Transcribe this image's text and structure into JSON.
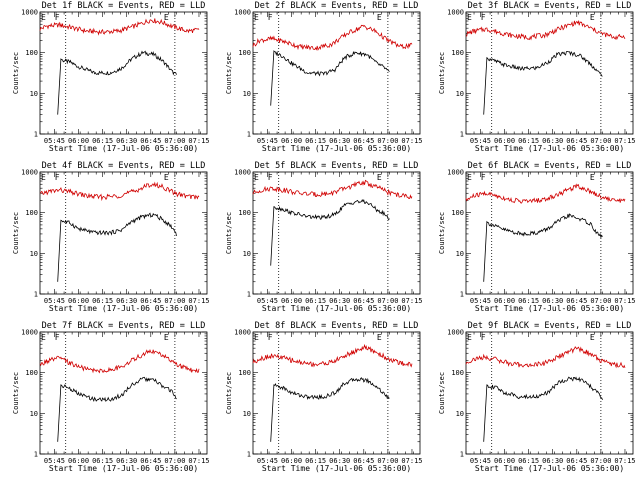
{
  "chart_data": [
    {
      "type": "line",
      "title": "Det 1f BLACK = Events, RED = LLD",
      "xlabel": "Start Time (17-Jul-06 05:36:00)",
      "ylabel": "Counts/sec",
      "yscale": "log",
      "ylim": [
        1,
        1000
      ],
      "x_ticks": [
        "05:45",
        "06:00",
        "06:15",
        "06:30",
        "06:45",
        "07:00",
        "07:15"
      ],
      "y_ticks": [
        "1",
        "10",
        "100",
        "1000"
      ],
      "markers": [
        {
          "label": "F",
          "x": "05:52"
        },
        {
          "label": "E",
          "x": "07:00"
        }
      ],
      "series": [
        {
          "color": "#000000",
          "x": [
            "05:47",
            "05:49",
            "05:50",
            "05:55",
            "06:00",
            "06:10",
            "06:20",
            "06:27",
            "06:33",
            "06:40",
            "06:47",
            "06:53",
            "06:58",
            "07:01"
          ],
          "y": [
            3,
            70,
            65,
            58,
            45,
            32,
            32,
            42,
            70,
            100,
            90,
            60,
            35,
            28
          ]
        },
        {
          "color": "#d00000",
          "x": [
            "05:36",
            "05:40",
            "05:48",
            "05:55",
            "06:05",
            "06:15",
            "06:25",
            "06:35",
            "06:45",
            "06:52",
            "07:00",
            "07:08",
            "07:15"
          ],
          "y": [
            380,
            450,
            480,
            420,
            340,
            320,
            340,
            450,
            640,
            560,
            420,
            340,
            360
          ]
        }
      ]
    },
    {
      "type": "line",
      "title": "Det 2f BLACK = Events, RED = LLD",
      "xlabel": "Start Time (17-Jul-06 05:36:00)",
      "ylabel": "Counts/sec",
      "yscale": "log",
      "ylim": [
        1,
        1000
      ],
      "x_ticks": [
        "05:45",
        "06:00",
        "06:15",
        "06:30",
        "06:45",
        "07:00",
        "07:15"
      ],
      "y_ticks": [
        "1",
        "10",
        "100",
        "1000"
      ],
      "markers": [
        {
          "label": "F",
          "x": "05:52"
        },
        {
          "label": "E",
          "x": "07:00"
        }
      ],
      "series": [
        {
          "color": "#000000",
          "x": [
            "05:47",
            "05:49",
            "05:50",
            "05:55",
            "06:00",
            "06:10",
            "06:20",
            "06:27",
            "06:33",
            "06:40",
            "06:47",
            "06:53",
            "06:58",
            "07:01"
          ],
          "y": [
            5,
            110,
            100,
            80,
            55,
            32,
            30,
            38,
            75,
            100,
            90,
            55,
            42,
            32
          ]
        },
        {
          "color": "#d00000",
          "x": [
            "05:36",
            "05:40",
            "05:48",
            "05:55",
            "06:05",
            "06:15",
            "06:25",
            "06:35",
            "06:45",
            "06:52",
            "07:00",
            "07:08",
            "07:15"
          ],
          "y": [
            150,
            200,
            220,
            190,
            140,
            130,
            160,
            300,
            450,
            340,
            200,
            140,
            150
          ]
        }
      ]
    },
    {
      "type": "line",
      "title": "Det 3f BLACK = Events, RED = LLD",
      "xlabel": "Start Time (17-Jul-06 05:36:00)",
      "ylabel": "Counts/sec",
      "yscale": "log",
      "ylim": [
        1,
        1000
      ],
      "x_ticks": [
        "05:45",
        "06:00",
        "06:15",
        "06:30",
        "06:45",
        "07:00",
        "07:15"
      ],
      "y_ticks": [
        "1",
        "10",
        "100",
        "1000"
      ],
      "markers": [
        {
          "label": "F",
          "x": "05:52"
        },
        {
          "label": "E",
          "x": "07:00"
        }
      ],
      "series": [
        {
          "color": "#000000",
          "x": [
            "05:47",
            "05:49",
            "05:50",
            "05:55",
            "06:00",
            "06:10",
            "06:20",
            "06:27",
            "06:33",
            "06:40",
            "06:47",
            "06:53",
            "06:58",
            "07:01"
          ],
          "y": [
            3,
            75,
            70,
            60,
            50,
            40,
            42,
            58,
            90,
            100,
            85,
            55,
            35,
            25
          ]
        },
        {
          "color": "#d00000",
          "x": [
            "05:36",
            "05:40",
            "05:48",
            "05:55",
            "06:05",
            "06:15",
            "06:25",
            "06:35",
            "06:45",
            "06:52",
            "07:00",
            "07:08",
            "07:15"
          ],
          "y": [
            280,
            330,
            380,
            330,
            260,
            240,
            270,
            400,
            560,
            430,
            300,
            240,
            250
          ]
        }
      ]
    },
    {
      "type": "line",
      "title": "Det 4f BLACK = Events, RED = LLD",
      "xlabel": "Start Time (17-Jul-06 05:36:00)",
      "ylabel": "Counts/sec",
      "yscale": "log",
      "ylim": [
        1,
        1000
      ],
      "x_ticks": [
        "05:45",
        "06:00",
        "06:15",
        "06:30",
        "06:45",
        "07:00",
        "07:15"
      ],
      "y_ticks": [
        "1",
        "10",
        "100",
        "1000"
      ],
      "markers": [
        {
          "label": "F",
          "x": "05:52"
        },
        {
          "label": "E",
          "x": "07:00"
        }
      ],
      "series": [
        {
          "color": "#000000",
          "x": [
            "05:47",
            "05:49",
            "05:50",
            "05:55",
            "06:00",
            "06:10",
            "06:20",
            "06:27",
            "06:33",
            "06:40",
            "06:47",
            "06:53",
            "06:58",
            "07:01"
          ],
          "y": [
            2,
            65,
            62,
            55,
            40,
            32,
            32,
            38,
            60,
            80,
            90,
            65,
            45,
            30
          ]
        },
        {
          "color": "#d00000",
          "x": [
            "05:36",
            "05:40",
            "05:48",
            "05:55",
            "06:05",
            "06:15",
            "06:25",
            "06:35",
            "06:45",
            "06:52",
            "07:00",
            "07:08",
            "07:15"
          ],
          "y": [
            280,
            320,
            360,
            320,
            260,
            240,
            260,
            340,
            500,
            440,
            300,
            250,
            240
          ]
        }
      ]
    },
    {
      "type": "line",
      "title": "Det 5f BLACK = Events, RED = LLD",
      "xlabel": "Start Time (17-Jul-06 05:36:00)",
      "ylabel": "Counts/sec",
      "yscale": "log",
      "ylim": [
        1,
        1000
      ],
      "x_ticks": [
        "05:45",
        "06:00",
        "06:15",
        "06:30",
        "06:45",
        "07:00",
        "07:15"
      ],
      "y_ticks": [
        "1",
        "10",
        "100",
        "1000"
      ],
      "markers": [
        {
          "label": "F",
          "x": "05:52"
        },
        {
          "label": "E",
          "x": "07:00"
        }
      ],
      "series": [
        {
          "color": "#000000",
          "x": [
            "05:47",
            "05:49",
            "05:50",
            "05:55",
            "06:00",
            "06:10",
            "06:20",
            "06:27",
            "06:33",
            "06:40",
            "06:47",
            "06:53",
            "06:58",
            "07:01"
          ],
          "y": [
            5,
            140,
            135,
            120,
            100,
            80,
            75,
            90,
            150,
            190,
            180,
            120,
            90,
            70
          ]
        },
        {
          "color": "#d00000",
          "x": [
            "05:36",
            "05:40",
            "05:48",
            "05:55",
            "06:05",
            "06:15",
            "06:25",
            "06:35",
            "06:45",
            "06:52",
            "07:00",
            "07:08",
            "07:15"
          ],
          "y": [
            300,
            350,
            400,
            360,
            300,
            280,
            300,
            420,
            560,
            450,
            320,
            260,
            250
          ]
        }
      ]
    },
    {
      "type": "line",
      "title": "Det 6f BLACK = Events, RED = LLD",
      "xlabel": "Start Time (17-Jul-06 05:36:00)",
      "ylabel": "Counts/sec",
      "yscale": "log",
      "ylim": [
        1,
        1000
      ],
      "x_ticks": [
        "05:45",
        "06:00",
        "06:15",
        "06:30",
        "06:45",
        "07:00",
        "07:15"
      ],
      "y_ticks": [
        "1",
        "10",
        "100",
        "1000"
      ],
      "markers": [
        {
          "label": "F",
          "x": "05:52"
        },
        {
          "label": "E",
          "x": "07:00"
        }
      ],
      "series": [
        {
          "color": "#000000",
          "x": [
            "05:47",
            "05:49",
            "05:50",
            "05:55",
            "06:00",
            "06:10",
            "06:20",
            "06:27",
            "06:33",
            "06:40",
            "06:47",
            "06:53",
            "06:58",
            "07:01"
          ],
          "y": [
            2,
            60,
            55,
            45,
            38,
            30,
            32,
            40,
            60,
            85,
            70,
            55,
            30,
            25
          ]
        },
        {
          "color": "#d00000",
          "x": [
            "05:36",
            "05:40",
            "05:48",
            "05:55",
            "06:05",
            "06:15",
            "06:25",
            "06:35",
            "06:45",
            "06:52",
            "07:00",
            "07:08",
            "07:15"
          ],
          "y": [
            200,
            250,
            300,
            260,
            200,
            190,
            210,
            300,
            460,
            360,
            250,
            200,
            200
          ]
        }
      ]
    },
    {
      "type": "line",
      "title": "Det 7f BLACK = Events, RED = LLD",
      "xlabel": "Start Time (17-Jul-06 05:36:00)",
      "ylabel": "Counts/sec",
      "yscale": "log",
      "ylim": [
        1,
        1000
      ],
      "x_ticks": [
        "05:45",
        "06:00",
        "06:15",
        "06:30",
        "06:45",
        "07:00",
        "07:15"
      ],
      "y_ticks": [
        "1",
        "10",
        "100",
        "1000"
      ],
      "markers": [
        {
          "label": "F",
          "x": "05:52"
        },
        {
          "label": "E",
          "x": "07:00"
        }
      ],
      "series": [
        {
          "color": "#000000",
          "x": [
            "05:47",
            "05:49",
            "05:50",
            "05:55",
            "06:00",
            "06:10",
            "06:20",
            "06:27",
            "06:33",
            "06:40",
            "06:47",
            "06:53",
            "06:58",
            "07:01"
          ],
          "y": [
            2,
            50,
            48,
            40,
            30,
            22,
            22,
            28,
            50,
            70,
            65,
            45,
            35,
            25
          ]
        },
        {
          "color": "#d00000",
          "x": [
            "05:36",
            "05:40",
            "05:48",
            "05:55",
            "06:05",
            "06:15",
            "06:25",
            "06:35",
            "06:45",
            "06:52",
            "07:00",
            "07:08",
            "07:15"
          ],
          "y": [
            150,
            190,
            230,
            170,
            120,
            110,
            130,
            220,
            350,
            270,
            170,
            120,
            110
          ]
        }
      ]
    },
    {
      "type": "line",
      "title": "Det 8f BLACK = Events, RED = LLD",
      "xlabel": "Start Time (17-Jul-06 05:36:00)",
      "ylabel": "Counts/sec",
      "yscale": "log",
      "ylim": [
        1,
        1000
      ],
      "x_ticks": [
        "05:45",
        "06:00",
        "06:15",
        "06:30",
        "06:45",
        "07:00",
        "07:15"
      ],
      "y_ticks": [
        "1",
        "10",
        "100",
        "1000"
      ],
      "markers": [
        {
          "label": "F",
          "x": "05:52"
        },
        {
          "label": "E",
          "x": "07:00"
        }
      ],
      "series": [
        {
          "color": "#000000",
          "x": [
            "05:47",
            "05:49",
            "05:50",
            "05:55",
            "06:00",
            "06:10",
            "06:20",
            "06:27",
            "06:33",
            "06:40",
            "06:47",
            "06:53",
            "06:58",
            "07:01"
          ],
          "y": [
            2,
            50,
            48,
            42,
            32,
            25,
            25,
            32,
            55,
            70,
            65,
            45,
            30,
            22
          ]
        },
        {
          "color": "#d00000",
          "x": [
            "05:36",
            "05:40",
            "05:48",
            "05:55",
            "06:05",
            "06:15",
            "06:25",
            "06:35",
            "06:45",
            "06:52",
            "07:00",
            "07:08",
            "07:15"
          ],
          "y": [
            180,
            220,
            260,
            230,
            180,
            160,
            180,
            280,
            420,
            330,
            220,
            170,
            160
          ]
        }
      ]
    },
    {
      "type": "line",
      "title": "Det 9f BLACK = Events, RED = LLD",
      "xlabel": "Start Time (17-Jul-06 05:36:00)",
      "ylabel": "Counts/sec",
      "yscale": "log",
      "ylim": [
        1,
        1000
      ],
      "x_ticks": [
        "05:45",
        "06:00",
        "06:15",
        "06:30",
        "06:45",
        "07:00",
        "07:15"
      ],
      "y_ticks": [
        "1",
        "10",
        "100",
        "1000"
      ],
      "markers": [
        {
          "label": "F",
          "x": "05:52"
        },
        {
          "label": "E",
          "x": "07:00"
        }
      ],
      "series": [
        {
          "color": "#000000",
          "x": [
            "05:47",
            "05:49",
            "05:50",
            "05:55",
            "06:00",
            "06:10",
            "06:20",
            "06:27",
            "06:33",
            "06:40",
            "06:47",
            "06:53",
            "06:58",
            "07:01"
          ],
          "y": [
            2,
            50,
            48,
            42,
            32,
            25,
            26,
            32,
            55,
            72,
            68,
            48,
            32,
            22
          ]
        },
        {
          "color": "#d00000",
          "x": [
            "05:36",
            "05:40",
            "05:48",
            "05:55",
            "06:05",
            "06:15",
            "06:25",
            "06:35",
            "06:45",
            "06:52",
            "07:00",
            "07:08",
            "07:15"
          ],
          "y": [
            170,
            210,
            240,
            210,
            160,
            150,
            170,
            260,
            400,
            310,
            200,
            160,
            150
          ]
        }
      ]
    }
  ]
}
